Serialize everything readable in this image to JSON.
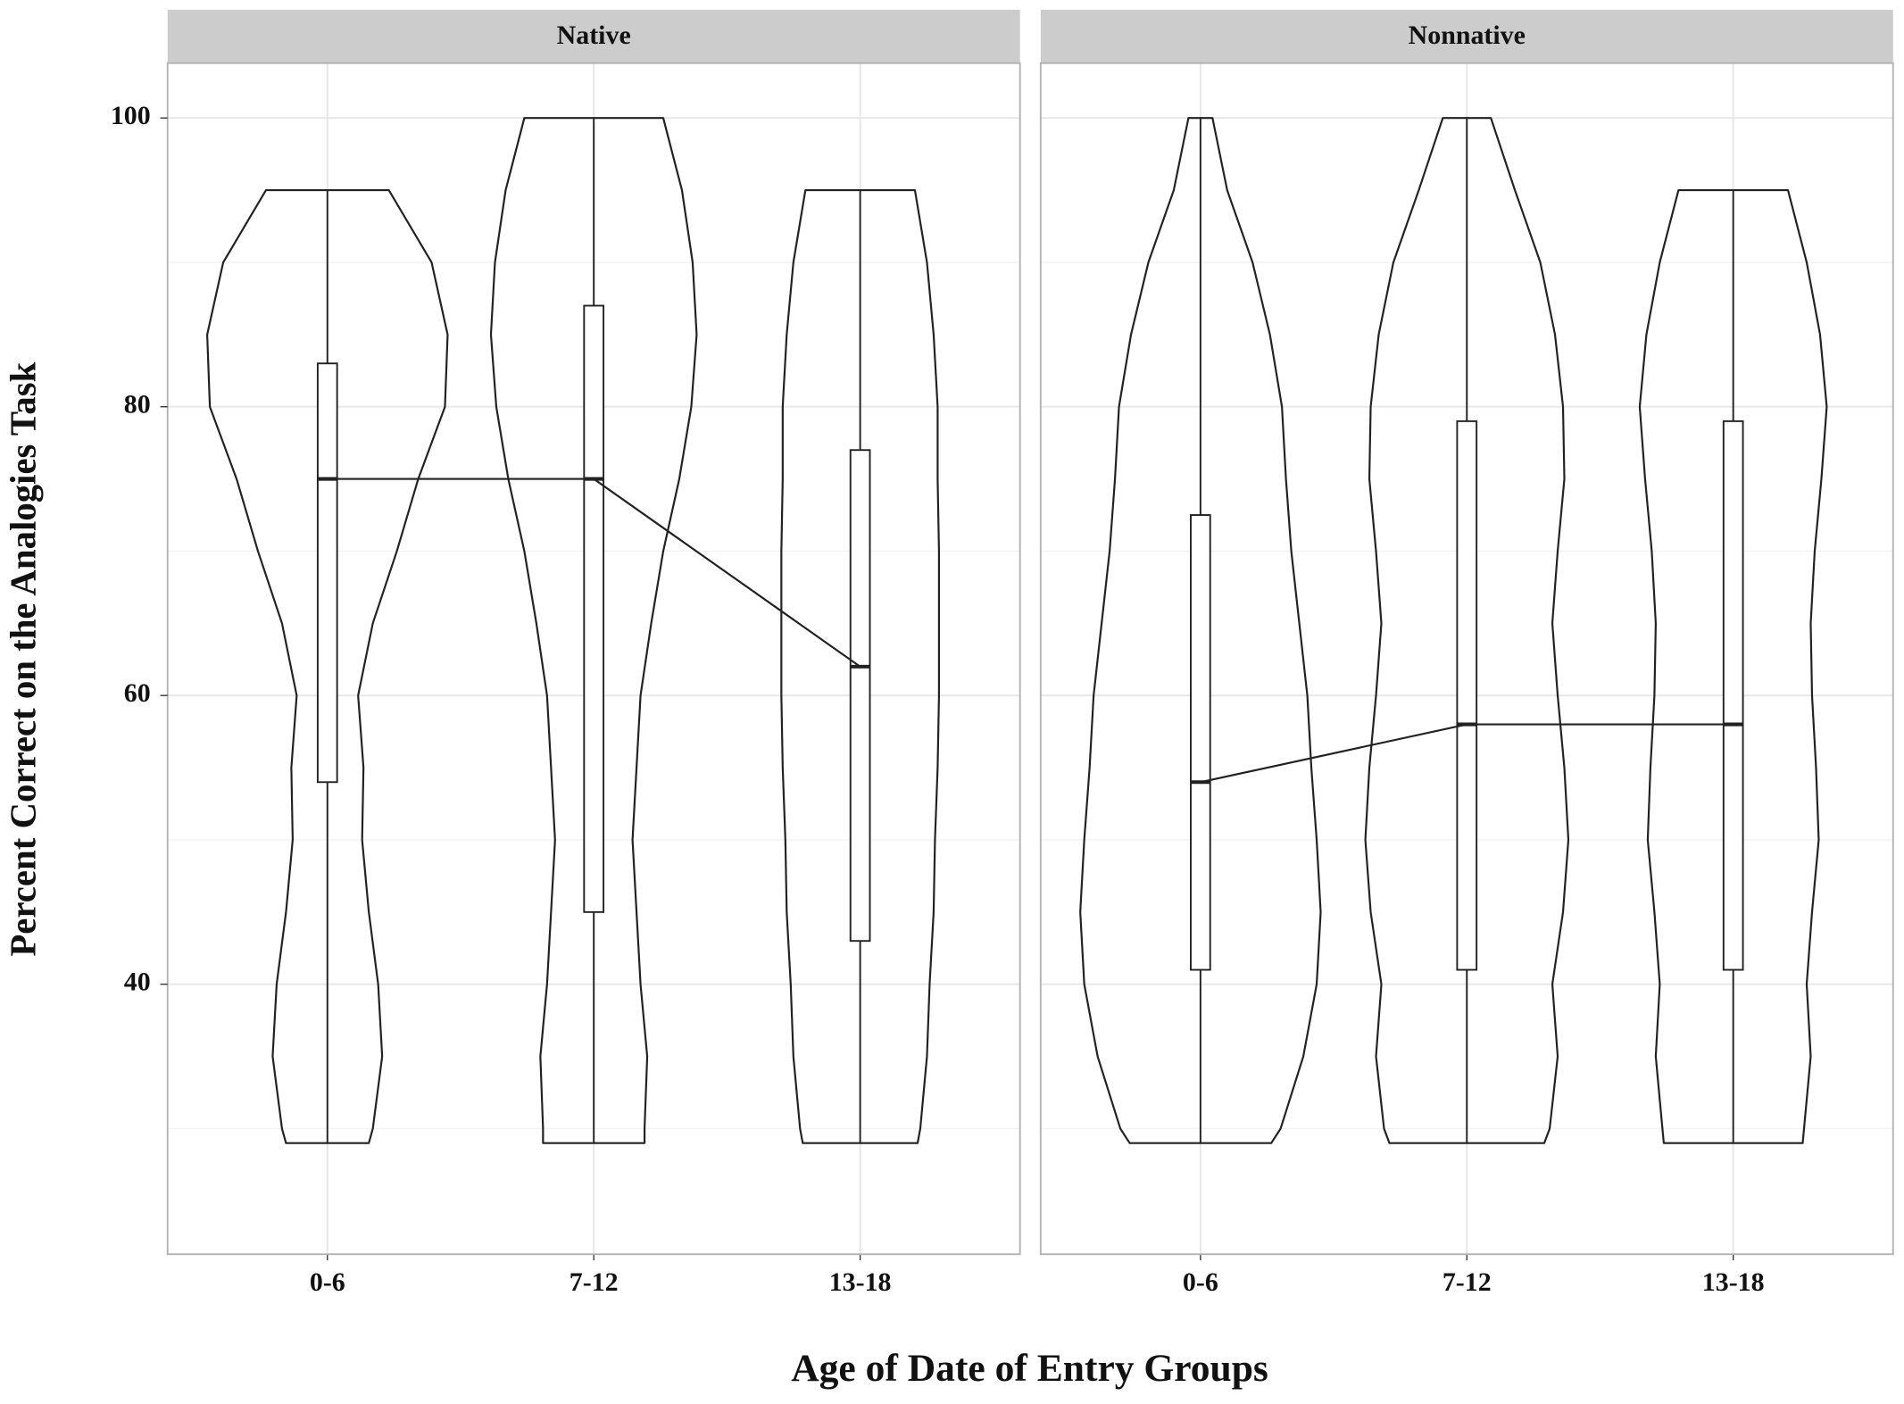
{
  "chart_data": {
    "type": "violin",
    "y_label": "Percent Correct on the Analogies Task",
    "x_label": "Age of Date of Entry Groups",
    "ylim": [
      21.3,
      103.8
    ],
    "yticks": [
      40,
      60,
      80,
      100
    ],
    "minor_yticks": [
      30,
      50,
      70,
      90
    ],
    "grid": true,
    "color": "#222222",
    "density_y": [
      29,
      30,
      35,
      40,
      45,
      50,
      55,
      60,
      65,
      70,
      75,
      80,
      85,
      90,
      95,
      100
    ],
    "panels": [
      {
        "title": "Native",
        "categories": [
          "0-6",
          "7-12",
          "13-18"
        ],
        "min": [
          29,
          29,
          29
        ],
        "q1": [
          54,
          45,
          43
        ],
        "median": [
          75,
          75,
          62
        ],
        "q3": [
          83,
          87,
          77
        ],
        "max": [
          95,
          100,
          95
        ],
        "density": [
          [
            0.31,
            0.34,
            0.41,
            0.38,
            0.31,
            0.26,
            0.27,
            0.23,
            0.34,
            0.52,
            0.68,
            0.88,
            0.9,
            0.78,
            0.46,
            null
          ],
          [
            0.38,
            0.38,
            0.4,
            0.35,
            0.32,
            0.29,
            0.32,
            0.35,
            0.43,
            0.52,
            0.64,
            0.73,
            0.77,
            0.74,
            0.66,
            0.52
          ],
          [
            0.43,
            0.45,
            0.5,
            0.52,
            0.55,
            0.56,
            0.58,
            0.59,
            0.59,
            0.59,
            0.58,
            0.58,
            0.55,
            0.5,
            0.41,
            null
          ]
        ]
      },
      {
        "title": "Nonnative",
        "categories": [
          "0-6",
          "7-12",
          "13-18"
        ],
        "min": [
          29,
          29,
          29
        ],
        "q1": [
          41,
          41,
          41
        ],
        "median": [
          54,
          58,
          58
        ],
        "q3": [
          72.5,
          79,
          79
        ],
        "max": [
          100,
          100,
          95
        ],
        "density": [
          [
            0.53,
            0.6,
            0.77,
            0.87,
            0.9,
            0.87,
            0.83,
            0.8,
            0.74,
            0.68,
            0.64,
            0.61,
            0.52,
            0.39,
            0.2,
            0.09
          ],
          [
            0.58,
            0.62,
            0.68,
            0.64,
            0.72,
            0.76,
            0.73,
            0.68,
            0.64,
            0.68,
            0.73,
            0.72,
            0.66,
            0.55,
            0.36,
            0.18
          ],
          [
            0.52,
            0.53,
            0.58,
            0.55,
            0.59,
            0.64,
            0.62,
            0.59,
            0.58,
            0.61,
            0.66,
            0.7,
            0.65,
            0.55,
            0.41,
            null
          ]
        ]
      }
    ]
  }
}
